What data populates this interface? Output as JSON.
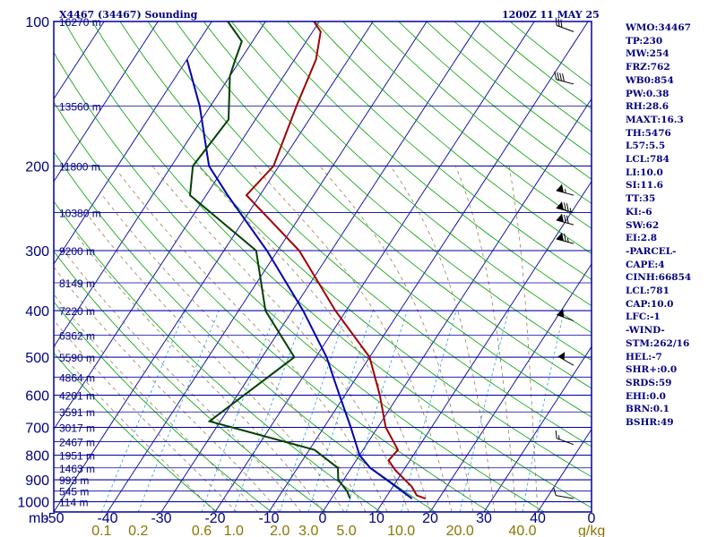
{
  "header": {
    "station": "X4467 (34467) Sounding",
    "time": "1200Z 11 MAY 25"
  },
  "indices": [
    "WMO:34467",
    "TP:230",
    "MW:254",
    "FRZ:762",
    "WB0:854",
    "PW:0.38",
    "RH:28.6",
    "MAXT:16.3",
    "TH:5476",
    "L57:5.5",
    "LCL:784",
    "LI:10.0",
    "SI:11.6",
    "TT:35",
    "KI:-6",
    "SW:62",
    "EI:2.8",
    "-PARCEL-",
    "CAPE:4",
    "CINH:66854",
    "LCL:781",
    "CAP:10.0",
    "LFC:-1",
    "-WIND-",
    "STM:262/16",
    "HEL:-7",
    "SHR+:0.0",
    "SRDS:59",
    "EHI:0.0",
    "BRN:0.1",
    "BSHR:49"
  ],
  "colors": {
    "isobar": "#0000a0",
    "dry_adiabat": "#00a000",
    "moist_adiabat": "#8b6f3c",
    "mixing_ratio": "#2aa0d0",
    "temperature": "#a00000",
    "dewpoint": "#004000",
    "parcel": "#0000b0",
    "label_text": "#000080",
    "mixing_label_text": "#8b7500",
    "wind_barb": "#000000"
  },
  "chart_data": {
    "type": "line",
    "diagram": "skew-T log-p",
    "pressure_unit_label": "mb",
    "mixing_ratio_unit_label": "g/kg",
    "y_axis_pressure_labels": [
      "100",
      "200",
      "300",
      "400",
      "500",
      "600",
      "700",
      "800",
      "900",
      "1000"
    ],
    "x_axis_temperature_labels": [
      "-50",
      "-40",
      "-30",
      "-20",
      "-10",
      "0",
      "10",
      "20",
      "30",
      "40",
      "0"
    ],
    "mixing_ratio_labels": [
      "0.1",
      "0.2",
      "0.6",
      "1.0",
      "2.0",
      "3.0",
      "5.0",
      "10.0",
      "20.0",
      "40.0"
    ],
    "height_labels": [
      {
        "p": 100,
        "text": "16270 m"
      },
      {
        "p": 150,
        "text": "13560 m"
      },
      {
        "p": 200,
        "text": "11800 m"
      },
      {
        "p": 250,
        "text": "10380 m"
      },
      {
        "p": 300,
        "text": "9200 m"
      },
      {
        "p": 350,
        "text": "8149 m"
      },
      {
        "p": 400,
        "text": "7220 m"
      },
      {
        "p": 450,
        "text": "6362 m"
      },
      {
        "p": 500,
        "text": "5590 m"
      },
      {
        "p": 550,
        "text": "4864 m"
      },
      {
        "p": 600,
        "text": "4201 m"
      },
      {
        "p": 650,
        "text": "3591 m"
      },
      {
        "p": 700,
        "text": "3017 m"
      },
      {
        "p": 750,
        "text": "2467 m"
      },
      {
        "p": 800,
        "text": "1951 m"
      },
      {
        "p": 850,
        "text": "1463 m"
      },
      {
        "p": 900,
        "text": "993 m"
      },
      {
        "p": 950,
        "text": "545 m"
      },
      {
        "p": 1000,
        "text": "114 m"
      }
    ],
    "temperature_profile": [
      {
        "p": 985,
        "t": 17.5
      },
      {
        "p": 970,
        "t": 15.5
      },
      {
        "p": 930,
        "t": 13.5
      },
      {
        "p": 860,
        "t": 8.5
      },
      {
        "p": 820,
        "t": 6.0
      },
      {
        "p": 780,
        "t": 6.5
      },
      {
        "p": 700,
        "t": 1.5
      },
      {
        "p": 600,
        "t": -3.5
      },
      {
        "p": 500,
        "t": -10.0
      },
      {
        "p": 400,
        "t": -22.0
      },
      {
        "p": 300,
        "t": -36.0
      },
      {
        "p": 230,
        "t": -52.5
      },
      {
        "p": 200,
        "t": -51.0
      },
      {
        "p": 150,
        "t": -54.0
      },
      {
        "p": 120,
        "t": -56.0
      },
      {
        "p": 105,
        "t": -58.5
      },
      {
        "p": 100,
        "t": -61.0
      }
    ],
    "dewpoint_profile": [
      {
        "p": 985,
        "t": 3.5
      },
      {
        "p": 950,
        "t": 2.0
      },
      {
        "p": 900,
        "t": -1.0
      },
      {
        "p": 850,
        "t": -2.5
      },
      {
        "p": 780,
        "t": -9.0
      },
      {
        "p": 680,
        "t": -32.0
      },
      {
        "p": 500,
        "t": -24.0
      },
      {
        "p": 400,
        "t": -35.0
      },
      {
        "p": 300,
        "t": -44.0
      },
      {
        "p": 230,
        "t": -63.0
      },
      {
        "p": 200,
        "t": -66.0
      },
      {
        "p": 160,
        "t": -65.0
      },
      {
        "p": 130,
        "t": -70.0
      },
      {
        "p": 120,
        "t": -71.0
      },
      {
        "p": 110,
        "t": -72.0
      },
      {
        "p": 100,
        "t": -77.0
      }
    ],
    "parcel_profile": [
      {
        "p": 985,
        "t": 15.0
      },
      {
        "p": 900,
        "t": 8.0
      },
      {
        "p": 850,
        "t": 3.5
      },
      {
        "p": 800,
        "t": 0.0
      },
      {
        "p": 700,
        "t": -5.0
      },
      {
        "p": 600,
        "t": -11.0
      },
      {
        "p": 500,
        "t": -18.0
      },
      {
        "p": 400,
        "t": -28.0
      },
      {
        "p": 300,
        "t": -42.0
      },
      {
        "p": 230,
        "t": -56.0
      },
      {
        "p": 200,
        "t": -63.0
      },
      {
        "p": 150,
        "t": -72.0
      },
      {
        "p": 120,
        "t": -80.0
      }
    ],
    "wind_barbs": [
      {
        "p": 985,
        "dir": 280,
        "kt": 10
      },
      {
        "p": 760,
        "dir": 290,
        "kt": 15
      },
      {
        "p": 520,
        "dir": 300,
        "kt": 50
      },
      {
        "p": 420,
        "dir": 290,
        "kt": 60
      },
      {
        "p": 290,
        "dir": 285,
        "kt": 75
      },
      {
        "p": 265,
        "dir": 285,
        "kt": 80
      },
      {
        "p": 250,
        "dir": 285,
        "kt": 85
      },
      {
        "p": 230,
        "dir": 285,
        "kt": 65
      },
      {
        "p": 135,
        "dir": 285,
        "kt": 40
      },
      {
        "p": 105,
        "dir": 290,
        "kt": 30
      }
    ],
    "pressure_range_mb": [
      100,
      1050
    ],
    "temperature_range_at_base_c": [
      -50,
      50
    ]
  }
}
